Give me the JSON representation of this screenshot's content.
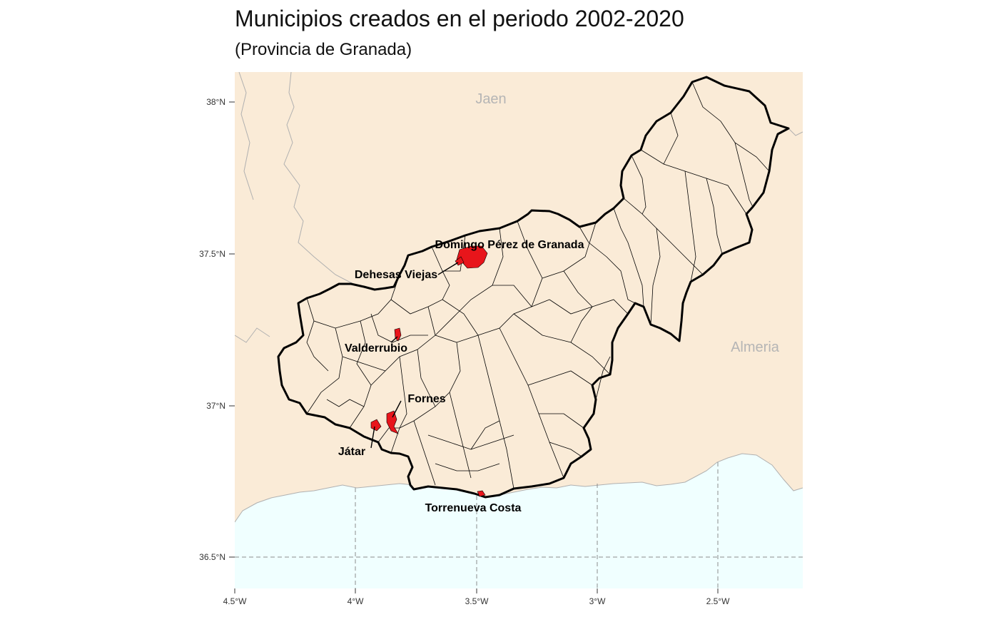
{
  "title": "Municipios creados en el periodo 2002-2020",
  "subtitle": "(Provincia de Granada)",
  "colors": {
    "land": "#faebd7",
    "sea": "#f0ffff",
    "highlight": "#e8151b",
    "grid": "#8c8c8c",
    "region_label": "#b5b5b5",
    "neighbor_border": "#b0b0b0"
  },
  "axes": {
    "lon_ticks": [
      "4.5°W",
      "4°W",
      "3.5°W",
      "3°W",
      "2.5°W"
    ],
    "lat_ticks": [
      "38°N",
      "37.5°N",
      "37°N",
      "36.5°N"
    ]
  },
  "regions": [
    {
      "name": "Jaen"
    },
    {
      "name": "Almeria"
    }
  ],
  "municipalities": [
    {
      "name": "Domingo Pérez de Granada"
    },
    {
      "name": "Dehesas Viejas"
    },
    {
      "name": "Valderrubio"
    },
    {
      "name": "Fornes"
    },
    {
      "name": "Játar"
    },
    {
      "name": "Torrenueva Costa"
    }
  ]
}
